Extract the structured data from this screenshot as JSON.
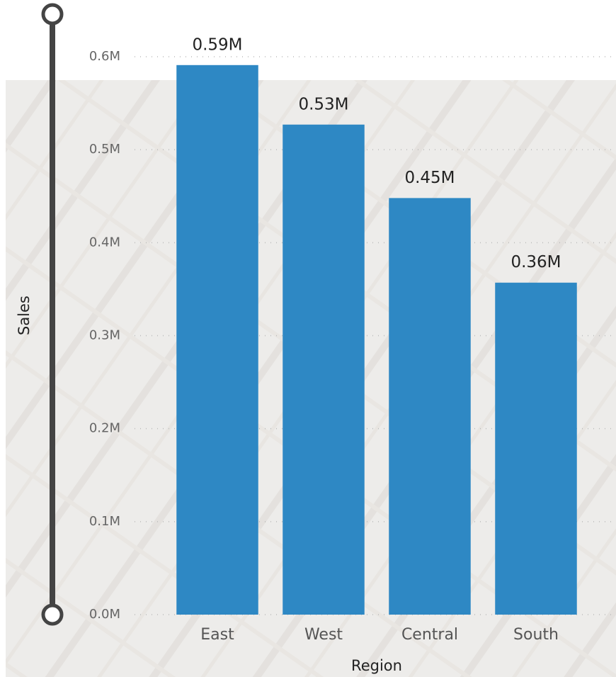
{
  "chart_data": {
    "type": "bar",
    "x_label": "Region",
    "y_label": "Sales",
    "categories": [
      "East",
      "West",
      "Central",
      "South"
    ],
    "values": [
      591000,
      527000,
      448000,
      357000
    ],
    "value_labels": [
      "0.59M",
      "0.53M",
      "0.45M",
      "0.36M"
    ],
    "color": "#2e88c4",
    "ylim": [
      0,
      600000
    ],
    "yticks": [
      {
        "value": 0,
        "label": "0.0M"
      },
      {
        "value": 100000,
        "label": "0.1M"
      },
      {
        "value": 200000,
        "label": "0.2M"
      },
      {
        "value": 300000,
        "label": "0.3M"
      },
      {
        "value": 400000,
        "label": "0.4M"
      },
      {
        "value": 500000,
        "label": "0.5M"
      },
      {
        "value": 600000,
        "label": "0.6M"
      }
    ],
    "grid": true
  }
}
